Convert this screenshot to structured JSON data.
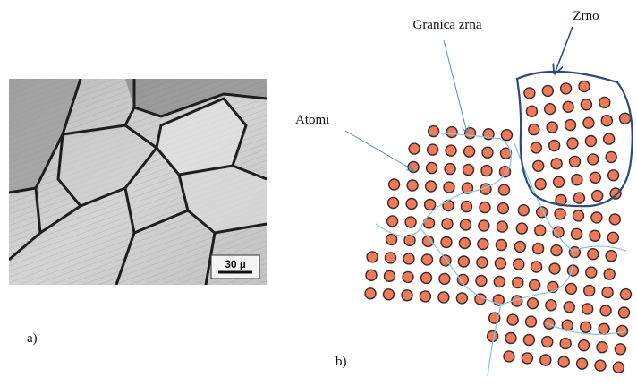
{
  "micrograph": {
    "scale_bar": "30 µ",
    "label": "a)"
  },
  "diagram": {
    "grain_boundary": "Granica zrna",
    "grain": "Zrno",
    "atoms": "Atomi",
    "label": "b)"
  }
}
